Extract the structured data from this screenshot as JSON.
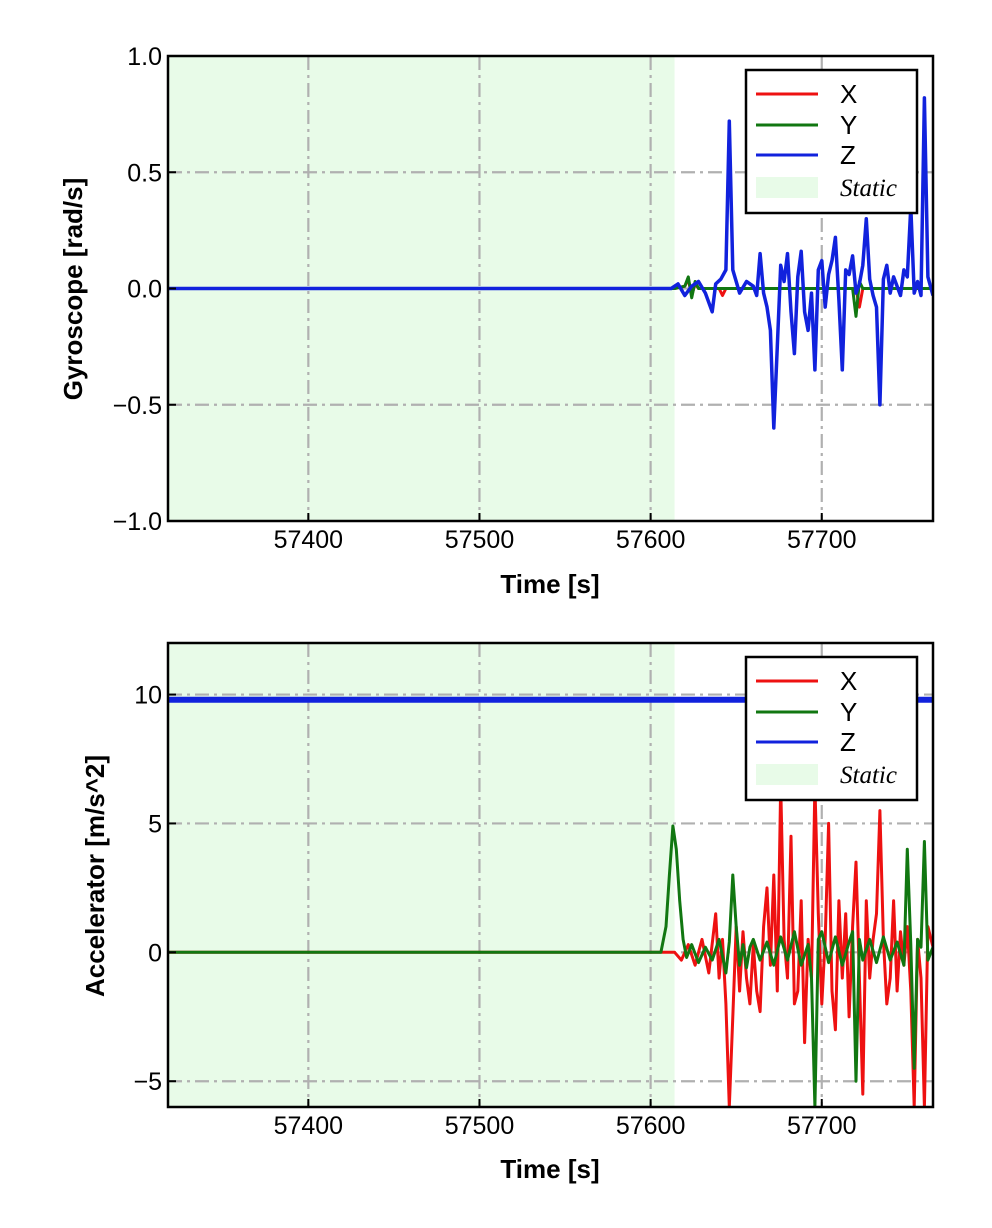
{
  "chart_data": [
    {
      "type": "line",
      "xlabel": "Time [s]",
      "ylabel": "Gyroscope [rad/s]",
      "xlim": [
        57318,
        57765
      ],
      "ylim": [
        -1.0,
        1.0
      ],
      "xticks": [
        57400,
        57500,
        57600,
        57700
      ],
      "xtick_labels": [
        "57400",
        "57500",
        "57600",
        "57700"
      ],
      "yticks": [
        -1.0,
        -0.5,
        0.0,
        0.5,
        1.0
      ],
      "ytick_labels": [
        "−1.0",
        "−0.5",
        "0.0",
        "0.5",
        "1.0"
      ],
      "grid": true,
      "legend_position": "top-right",
      "static_region": {
        "label": "Static",
        "x": [
          57318,
          57614
        ],
        "color": "#e8fbe8"
      },
      "series": [
        {
          "name": "X",
          "color": "#ee1111",
          "x": [
            57318,
            57614,
            57620,
            57622,
            57624,
            57626,
            57628,
            57640,
            57642,
            57644,
            57660,
            57700,
            57720,
            57722,
            57724,
            57765
          ],
          "y": [
            0,
            0,
            0.01,
            0.04,
            -0.03,
            0.02,
            0,
            0,
            -0.03,
            0,
            0,
            0,
            0,
            -0.08,
            0,
            0
          ]
        },
        {
          "name": "Y",
          "color": "#117711",
          "x": [
            57318,
            57614,
            57620,
            57622,
            57624,
            57626,
            57628,
            57660,
            57700,
            57718,
            57720,
            57722,
            57724,
            57765
          ],
          "y": [
            0,
            0,
            0.01,
            0.05,
            -0.04,
            0.03,
            0,
            0,
            0,
            0,
            -0.12,
            0.03,
            0,
            0
          ]
        },
        {
          "name": "Z",
          "color": "#1122dd",
          "x": [
            57318,
            57612,
            57616,
            57620,
            57624,
            57628,
            57632,
            57636,
            57638,
            57641,
            57644,
            57646,
            57648,
            57652,
            57656,
            57660,
            57662,
            57664,
            57666,
            57668,
            57670,
            57672,
            57674,
            57676,
            57678,
            57680,
            57682,
            57684,
            57686,
            57688,
            57690,
            57692,
            57694,
            57696,
            57698,
            57700,
            57702,
            57704,
            57706,
            57708,
            57710,
            57712,
            57714,
            57716,
            57718,
            57720,
            57722,
            57724,
            57726,
            57728,
            57730,
            57732,
            57734,
            57736,
            57738,
            57740,
            57742,
            57744,
            57746,
            57748,
            57750,
            57752,
            57754,
            57756,
            57758,
            57760,
            57762,
            57765
          ],
          "y": [
            0,
            0,
            0.02,
            -0.03,
            0.01,
            0.03,
            -0.02,
            -0.1,
            0.02,
            0.04,
            0.08,
            0.72,
            0.08,
            -0.02,
            0.03,
            0.01,
            -0.03,
            0.15,
            -0.02,
            -0.08,
            -0.18,
            -0.6,
            -0.25,
            0.1,
            0.03,
            0.15,
            -0.1,
            -0.28,
            0.05,
            0.16,
            -0.1,
            -0.18,
            -0.02,
            -0.35,
            0.08,
            0.12,
            -0.08,
            0.06,
            0.12,
            0.22,
            -0.05,
            -0.35,
            0.08,
            0.06,
            0.14,
            -0.02,
            0.02,
            0.1,
            0.3,
            0.04,
            -0.03,
            -0.08,
            -0.5,
            0.04,
            0.1,
            -0.02,
            0.05,
            0.01,
            -0.03,
            0.08,
            0.05,
            0.35,
            -0.02,
            0.03,
            -0.03,
            0.82,
            0.05,
            -0.03
          ]
        }
      ]
    },
    {
      "type": "line",
      "xlabel": "Time [s]",
      "ylabel": "Accelerator [m/s^2]",
      "xlim": [
        57318,
        57765
      ],
      "ylim": [
        -6.0,
        12.0
      ],
      "xticks": [
        57400,
        57500,
        57600,
        57700
      ],
      "xtick_labels": [
        "57400",
        "57500",
        "57600",
        "57700"
      ],
      "yticks": [
        -5,
        0,
        5,
        10
      ],
      "ytick_labels": [
        "−5",
        "0",
        "5",
        "10"
      ],
      "grid": true,
      "legend_position": "top-right",
      "static_region": {
        "label": "Static",
        "x": [
          57318,
          57614
        ],
        "color": "#e8fbe8"
      },
      "series": [
        {
          "name": "X",
          "color": "#ee1111",
          "x": [
            57318,
            57614,
            57618,
            57622,
            57626,
            57630,
            57634,
            57638,
            57640,
            57642,
            57644,
            57646,
            57648,
            57650,
            57652,
            57654,
            57656,
            57658,
            57660,
            57662,
            57664,
            57666,
            57668,
            57670,
            57672,
            57674,
            57676,
            57678,
            57680,
            57682,
            57684,
            57686,
            57688,
            57690,
            57692,
            57694,
            57696,
            57698,
            57700,
            57702,
            57704,
            57706,
            57708,
            57710,
            57712,
            57714,
            57716,
            57718,
            57720,
            57722,
            57724,
            57726,
            57728,
            57730,
            57732,
            57734,
            57736,
            57738,
            57740,
            57742,
            57744,
            57746,
            57748,
            57750,
            57752,
            57754,
            57756,
            57758,
            57760,
            57762,
            57765
          ],
          "y": [
            0,
            0,
            -0.3,
            0.3,
            -0.5,
            0.5,
            -0.8,
            1.5,
            -1.0,
            0.5,
            -2.0,
            -6.0,
            -2.5,
            1.0,
            -1.5,
            0.8,
            -1.0,
            -2.0,
            0.3,
            -1.5,
            -2.3,
            1.0,
            2.5,
            -0.5,
            3.0,
            -1.5,
            6.5,
            0.5,
            -1.0,
            4.5,
            -2.0,
            -1.5,
            2.0,
            -3.5,
            0.5,
            -1.0,
            6.5,
            1.5,
            -2.0,
            0.5,
            5.0,
            -1.5,
            -3.0,
            2.0,
            -1.0,
            1.5,
            -2.5,
            1.0,
            3.5,
            -1.0,
            -5.5,
            2.0,
            -1.0,
            0.5,
            1.5,
            5.5,
            0.5,
            -2.0,
            -1.0,
            2.0,
            -1.5,
            0.8,
            -0.5,
            1.0,
            -1.5,
            -6.0,
            0.5,
            -1.0,
            -6.0,
            1.0,
            0.2
          ]
        },
        {
          "name": "Y",
          "color": "#117711",
          "x": [
            57318,
            57606,
            57609,
            57611,
            57613,
            57615,
            57617,
            57619,
            57621,
            57624,
            57628,
            57632,
            57636,
            57640,
            57644,
            57646,
            57648,
            57650,
            57652,
            57654,
            57656,
            57658,
            57660,
            57664,
            57668,
            57672,
            57676,
            57680,
            57684,
            57688,
            57692,
            57694,
            57696,
            57698,
            57700,
            57704,
            57708,
            57712,
            57716,
            57718,
            57720,
            57722,
            57724,
            57728,
            57732,
            57736,
            57740,
            57744,
            57748,
            57750,
            57752,
            57754,
            57756,
            57758,
            57760,
            57762,
            57765
          ],
          "y": [
            0,
            0,
            1.0,
            3.0,
            4.9,
            4.0,
            2.0,
            0.5,
            -0.2,
            0.3,
            -0.4,
            0.2,
            -0.3,
            0.5,
            -0.8,
            0.4,
            3.0,
            1.0,
            -0.5,
            0.3,
            -0.6,
            0.2,
            0.5,
            -0.3,
            0.4,
            -0.5,
            0.6,
            -0.3,
            0.8,
            -0.5,
            0.3,
            -1.0,
            -6.0,
            0.5,
            0.8,
            -0.4,
            0.6,
            -0.5,
            0.4,
            0.8,
            -5.0,
            0.5,
            -0.3,
            0.5,
            -0.4,
            0.6,
            -0.3,
            0.4,
            -0.5,
            4.0,
            0.3,
            -4.5,
            0.5,
            0.2,
            4.3,
            -0.3,
            0.2
          ]
        },
        {
          "name": "Z",
          "color": "#1122dd",
          "x": [
            57318,
            57765
          ],
          "y": [
            9.8,
            9.8
          ]
        }
      ]
    }
  ]
}
